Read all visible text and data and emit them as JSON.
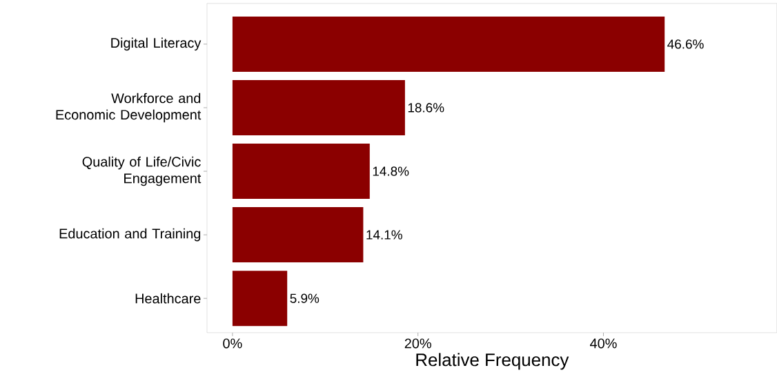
{
  "chart_data": {
    "type": "bar",
    "orientation": "horizontal",
    "xlabel": "Relative Frequency",
    "categories": [
      "Digital Literacy",
      "Workforce and Economic Development",
      "Quality of Life/Civic Engagement",
      "Education and Training",
      "Healthcare"
    ],
    "values": [
      46.6,
      18.6,
      14.8,
      14.1,
      5.9
    ],
    "value_labels": [
      "46.6%",
      "18.6%",
      "14.8%",
      "14.1%",
      "5.9%"
    ],
    "color": "#8b0000",
    "xlim": [
      -2.75,
      58.7
    ],
    "xticks": [
      {
        "value": 0,
        "label": "0%"
      },
      {
        "value": 20,
        "label": "20%"
      },
      {
        "value": 40,
        "label": "40%"
      }
    ],
    "grid": false
  }
}
